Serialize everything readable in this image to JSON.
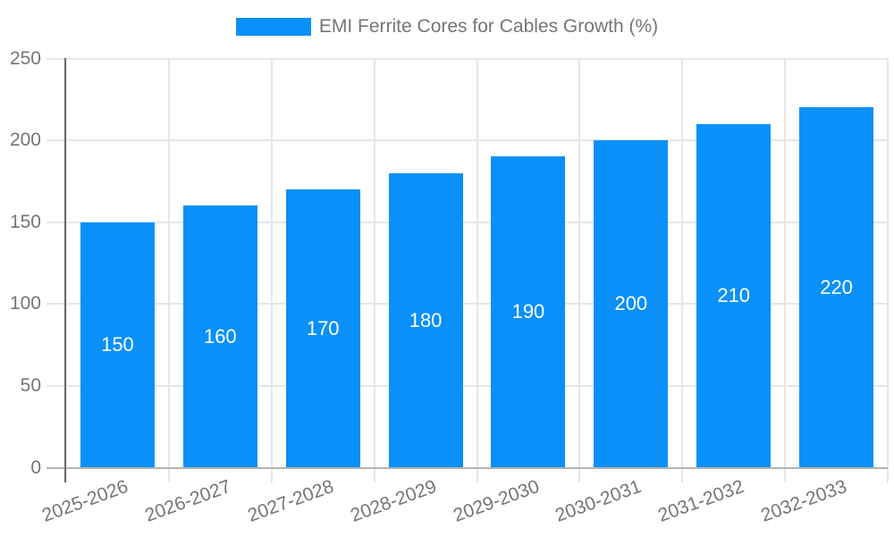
{
  "chart_data": {
    "type": "bar",
    "title": "EMI Ferrite Cores for Cables Growth (%)",
    "legend": {
      "position": "top-center",
      "entries": [
        "EMI Ferrite Cores for Cables Growth (%)"
      ]
    },
    "categories": [
      "2025-2026",
      "2026-2027",
      "2027-2028",
      "2028-2029",
      "2029-2030",
      "2030-2031",
      "2031-2032",
      "2032-2033"
    ],
    "values": [
      150,
      160,
      170,
      180,
      190,
      200,
      210,
      220
    ],
    "bar_labels": [
      "150",
      "160",
      "170",
      "180",
      "190",
      "200",
      "210",
      "220"
    ],
    "xlabel": "",
    "ylabel": "",
    "ylim": [
      0,
      250
    ],
    "yticks": [
      0,
      50,
      100,
      150,
      200,
      250
    ],
    "grid": true,
    "x_label_rotation_deg": -20,
    "colors": {
      "bar": "#0a90f8",
      "bar_value_text": "#ffffff",
      "gridline": "#e6e6e6",
      "baseline": "#b3b3b3",
      "y_axis_line": "#6b6b6b",
      "tick_text": "#757575",
      "legend_text": "#757575",
      "background": "#ffffff"
    }
  }
}
